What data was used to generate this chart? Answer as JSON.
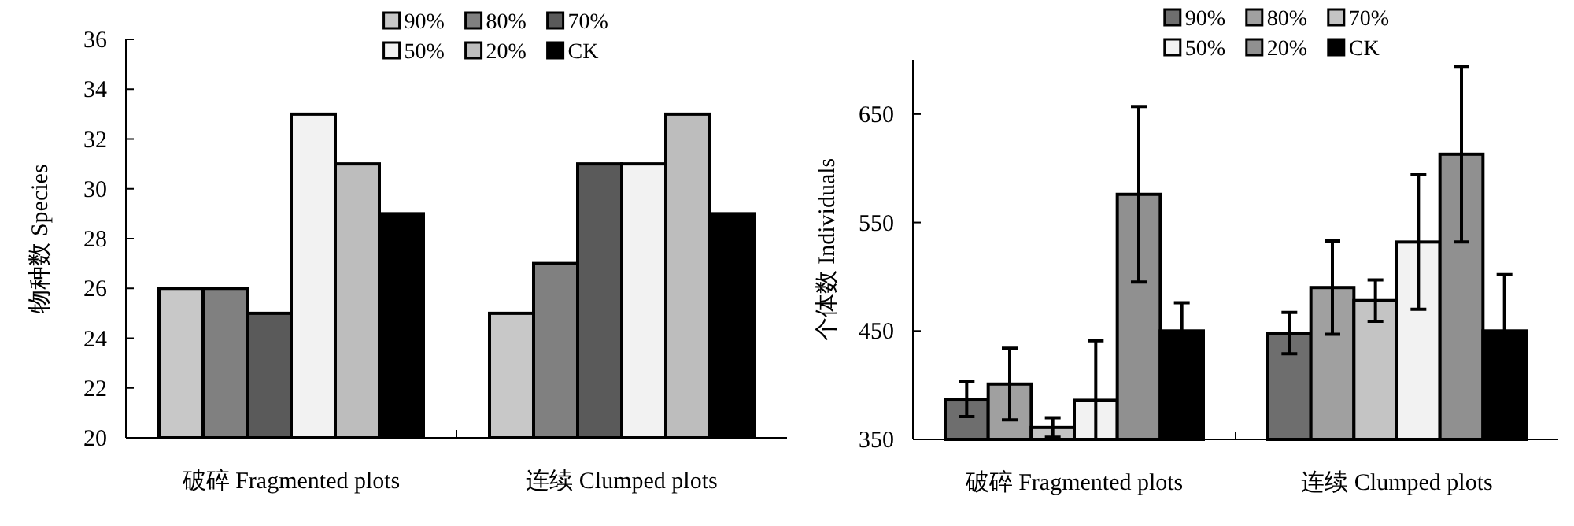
{
  "chart_data": [
    {
      "type": "bar",
      "ylabel": "物种数  Species",
      "categories": [
        "破碎 Fragmented plots",
        "连续 Clumped plots"
      ],
      "ylim": [
        20,
        36
      ],
      "yticks": [
        20,
        22,
        24,
        26,
        28,
        30,
        32,
        34,
        36
      ],
      "legend": "top right",
      "grid": false,
      "series": [
        {
          "name": "90%",
          "color": "#c8c8c8",
          "values": [
            26,
            25
          ]
        },
        {
          "name": "80%",
          "color": "#808080",
          "values": [
            26,
            27
          ]
        },
        {
          "name": "70%",
          "color": "#5a5a5a",
          "values": [
            25,
            31
          ]
        },
        {
          "name": "50%",
          "color": "#f2f2f2",
          "values": [
            33,
            31
          ]
        },
        {
          "name": "20%",
          "color": "#bdbdbd",
          "values": [
            31,
            33
          ]
        },
        {
          "name": "CK",
          "color": "#000000",
          "values": [
            29,
            29
          ]
        }
      ]
    },
    {
      "type": "bar",
      "ylabel": "个体数 Individuals",
      "categories": [
        "破碎 Fragmented plots",
        "连续 Clumped plots"
      ],
      "ylim": [
        350,
        700
      ],
      "yticks": [
        350,
        450,
        550,
        650
      ],
      "legend": "top right",
      "grid": false,
      "series": [
        {
          "name": "90%",
          "color": "#6e6e6e",
          "values": [
            387,
            448
          ],
          "errors": [
            16,
            19
          ]
        },
        {
          "name": "80%",
          "color": "#a0a0a0",
          "values": [
            401,
            490
          ],
          "errors": [
            33,
            43
          ]
        },
        {
          "name": "70%",
          "color": "#c4c4c4",
          "values": [
            361,
            478
          ],
          "errors": [
            9,
            19
          ]
        },
        {
          "name": "50%",
          "color": "#f2f2f2",
          "values": [
            386,
            532
          ],
          "errors": [
            [
              350,
              441
            ],
            62
          ]
        },
        {
          "name": "20%",
          "color": "#909090",
          "values": [
            576,
            613
          ],
          "errors": [
            81,
            81
          ]
        },
        {
          "name": "CK",
          "color": "#000000",
          "values": [
            450,
            450
          ],
          "errors": [
            26,
            52
          ]
        }
      ]
    }
  ]
}
